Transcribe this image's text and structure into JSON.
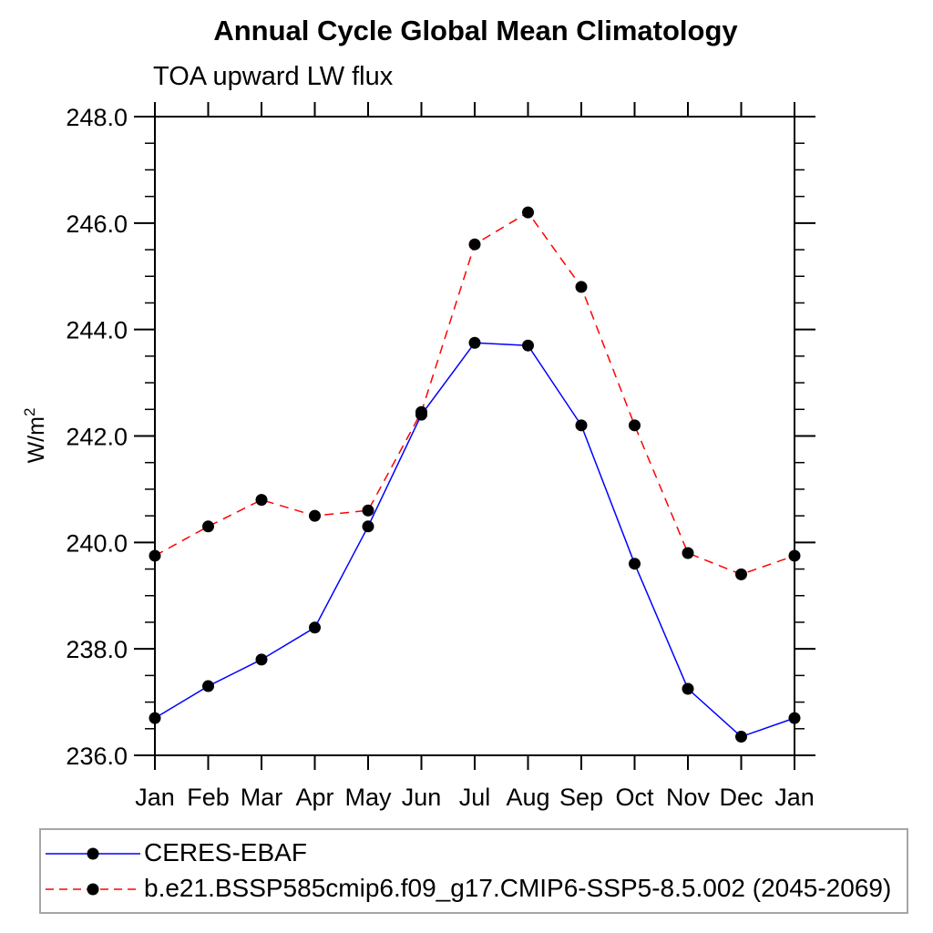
{
  "title": "Annual Cycle Global Mean Climatology",
  "subtitle": "TOA upward LW flux",
  "chart_data": {
    "type": "line",
    "x_categories": [
      "Jan",
      "Feb",
      "Mar",
      "Apr",
      "May",
      "Jun",
      "Jul",
      "Aug",
      "Sep",
      "Oct",
      "Nov",
      "Dec",
      "Jan"
    ],
    "xlabel": "",
    "ylabel": "W/m²",
    "ylim": [
      236.0,
      248.0
    ],
    "ytick_step": 2.0,
    "ytick_minor_step": 0.5,
    "ytick_labels": [
      "236.0",
      "238.0",
      "240.0",
      "242.0",
      "244.0",
      "246.0",
      "248.0"
    ],
    "grid": false,
    "legend_position": "bottom",
    "marker": {
      "shape": "circle",
      "color": "#000000",
      "radius": 6.5
    },
    "series": [
      {
        "name": "CERES-EBAF",
        "color": "#0000ff",
        "dash": "solid",
        "values": [
          236.7,
          237.3,
          237.8,
          238.4,
          240.3,
          242.4,
          243.75,
          243.7,
          242.2,
          239.6,
          237.25,
          236.35,
          236.7
        ]
      },
      {
        "name": "b.e21.BSSP585cmip6.f09_g17.CMIP6-SSP5-8.5.002 (2045-2069)",
        "color": "#ff0000",
        "dash": "dashed",
        "values": [
          239.75,
          240.3,
          240.8,
          240.5,
          240.6,
          242.45,
          245.6,
          246.2,
          244.8,
          242.2,
          239.8,
          239.4,
          239.75
        ]
      }
    ]
  }
}
